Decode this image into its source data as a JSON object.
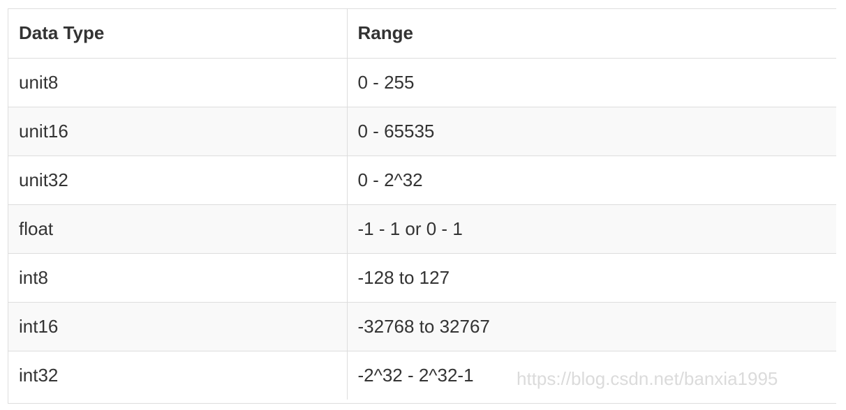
{
  "table": {
    "headers": [
      "Data Type",
      "Range"
    ],
    "rows": [
      [
        "unit8",
        "0 - 255"
      ],
      [
        "unit16",
        "0 - 65535"
      ],
      [
        "unit32",
        "0 - 2^32"
      ],
      [
        "float",
        "-1 - 1 or 0 - 1"
      ],
      [
        "int8",
        "-128 to 127"
      ],
      [
        "int16",
        "-32768 to 32767"
      ],
      [
        "int32",
        "-2^32 - 2^32-1"
      ]
    ]
  },
  "watermark": "https://blog.csdn.net/banxia1995"
}
